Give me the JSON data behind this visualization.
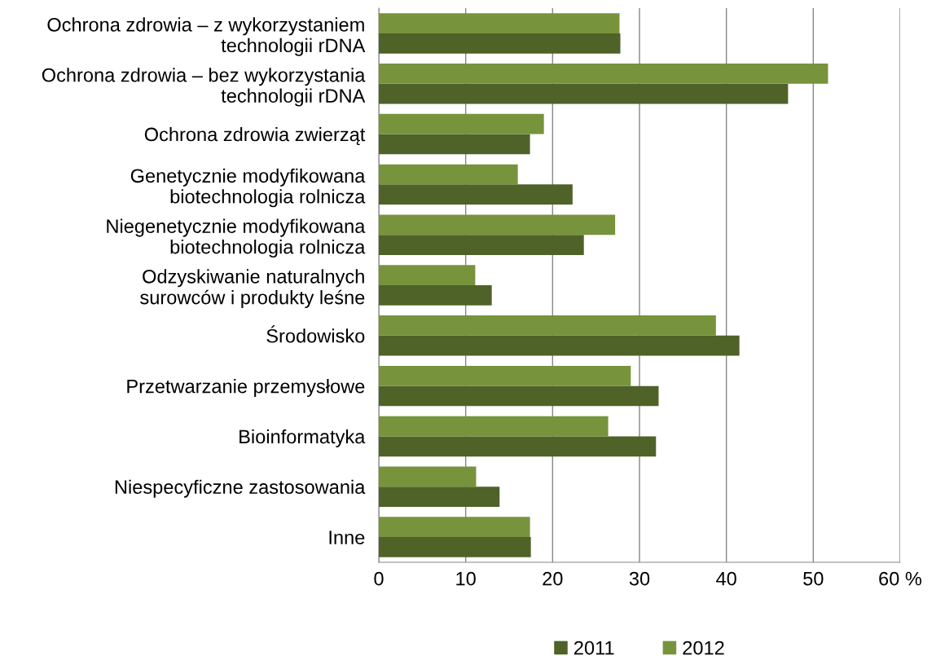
{
  "chart_data": {
    "type": "bar",
    "orientation": "horizontal",
    "categories": [
      "Ochrona zdrowia – z wykorzystaniem\ntechnologii rDNA",
      "Ochrona zdrowia – bez wykorzystania\ntechnologii rDNA",
      "Ochrona zdrowia zwierząt",
      "Genetycznie modyfikowana\nbiotechnologia rolnicza",
      "Niegenetycznie modyfikowana\nbiotechnologia rolnicza",
      "Odzyskiwanie naturalnych\nsurowców i produkty leśne",
      "Środowisko",
      "Przetwarzanie przemysłowe",
      "Bioinformatyka",
      "Niespecyficzne zastosowania",
      "Inne"
    ],
    "series": [
      {
        "name": "2011",
        "color": "#4f6228",
        "values": [
          27.8,
          47.1,
          17.4,
          22.3,
          23.6,
          13.0,
          41.5,
          32.2,
          31.9,
          13.9,
          17.5
        ]
      },
      {
        "name": "2012",
        "color": "#77933c",
        "values": [
          27.7,
          51.7,
          19.0,
          16.0,
          27.2,
          11.1,
          38.8,
          29.0,
          26.4,
          11.2,
          17.4
        ]
      }
    ],
    "xlim": [
      0,
      60
    ],
    "xticks": [
      0,
      10,
      20,
      30,
      40,
      50,
      {
        "value": 60,
        "label": "60 %"
      }
    ],
    "grid": "x",
    "legend": "bottom"
  }
}
